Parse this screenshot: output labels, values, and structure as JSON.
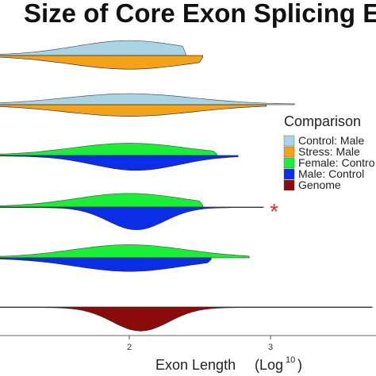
{
  "chart_data": {
    "type": "split-violin",
    "title": "Size of Core Exon Splicing E",
    "xlabel": "Exon Length",
    "xlabel_unit": "(Log",
    "xlabel_unit_sup": "10",
    "xlabel_unit_close": ")",
    "xlim": [
      0.85,
      3.72
    ],
    "xticks": [
      {
        "value": 2,
        "label": "2"
      },
      {
        "value": 3,
        "label": "3"
      }
    ],
    "legend": {
      "title": "Comparison",
      "position": "right",
      "entries": [
        {
          "label": "Control: Male",
          "color": "#a9d4e6"
        },
        {
          "label": "Stress: Male",
          "color": "#f5a21b"
        },
        {
          "label": "Female: Contro",
          "color": "#19ef36"
        },
        {
          "label": "Male: Control",
          "color": "#0a2ee8"
        },
        {
          "label": "Genome",
          "color": "#8b0a0a"
        }
      ]
    },
    "rows": [
      {
        "top": {
          "series": "Control: Male",
          "color": "#a9d4e6",
          "start": 0.85,
          "end": 2.4,
          "center": 2.0,
          "spread": 0.38,
          "peak": 0.55
        },
        "bottom": {
          "series": "Stress: Male",
          "color": "#f5a21b",
          "start": 0.85,
          "end": 2.52,
          "center": 2.0,
          "spread": 0.42,
          "peak": 0.5
        },
        "significant": false
      },
      {
        "top": {
          "series": "Control: Male",
          "color": "#a9d4e6",
          "start": 0.85,
          "end": 3.17,
          "center": 2.0,
          "spread": 0.45,
          "peak": 0.4
        },
        "bottom": {
          "series": "Stress: Male",
          "color": "#f5a21b",
          "start": 0.85,
          "end": 2.97,
          "center": 2.0,
          "spread": 0.45,
          "peak": 0.42
        },
        "significant": false
      },
      {
        "top": {
          "series": "Female: Contro",
          "color": "#19ef36",
          "start": 0.85,
          "end": 2.62,
          "center": 2.0,
          "spread": 0.4,
          "peak": 0.45
        },
        "bottom": {
          "series": "Male: Control",
          "color": "#0a2ee8",
          "start": 0.85,
          "end": 2.77,
          "center": 2.05,
          "spread": 0.3,
          "peak": 0.55
        },
        "significant": false
      },
      {
        "top": {
          "series": "Female: Contro",
          "color": "#19ef36",
          "start": 0.85,
          "end": 2.52,
          "center": 2.0,
          "spread": 0.38,
          "peak": 0.5
        },
        "bottom": {
          "series": "Male: Control",
          "color": "#0a2ee8",
          "start": 0.85,
          "end": 2.95,
          "center": 2.05,
          "spread": 0.2,
          "peak": 0.85
        },
        "significant": true
      },
      {
        "top": {
          "series": "Female: Contro",
          "color": "#19ef36",
          "start": 0.85,
          "end": 2.85,
          "center": 2.0,
          "spread": 0.4,
          "peak": 0.48
        },
        "bottom": {
          "series": "Male: Control",
          "color": "#0a2ee8",
          "start": 0.85,
          "end": 2.58,
          "center": 2.0,
          "spread": 0.38,
          "peak": 0.5
        },
        "significant": false
      },
      {
        "top": null,
        "bottom": {
          "series": "Genome",
          "color": "#8b0a0a",
          "start": 0.85,
          "end": 3.72,
          "center": 2.08,
          "spread": 0.2,
          "peak": 0.9
        },
        "significant": false
      }
    ],
    "significance_marker": "*"
  }
}
